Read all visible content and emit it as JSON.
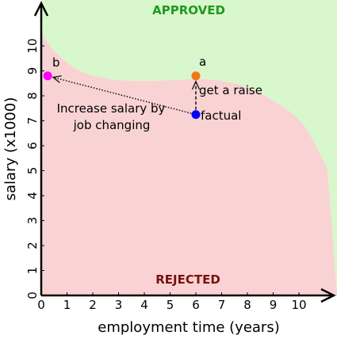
{
  "chart_data": {
    "type": "scatter",
    "title": "",
    "xlabel": "employment time (years)",
    "ylabel": "salary (x1000)",
    "xlim": [
      0,
      11.1
    ],
    "ylim": [
      0,
      11.1
    ],
    "x_ticks": [
      "0",
      "1",
      "2",
      "3",
      "4",
      "5",
      "6",
      "7",
      "8",
      "9",
      "10"
    ],
    "y_ticks": [
      "0",
      "1",
      "2",
      "3",
      "4",
      "5",
      "6",
      "7",
      "8",
      "9",
      "10"
    ],
    "grid": false,
    "regions": {
      "approved": {
        "label": "APPROVED",
        "fill": "#d9f7cc",
        "label_color": "#1e9a1e"
      },
      "rejected": {
        "label": "REJECTED",
        "fill": "#f9d3d3",
        "label_color": "#7a1010"
      }
    },
    "decision_boundary": [
      [
        0,
        10.5
      ],
      [
        0.6,
        9.7
      ],
      [
        1.5,
        9.0
      ],
      [
        2.5,
        8.7
      ],
      [
        3.5,
        8.6
      ],
      [
        4.5,
        8.6
      ],
      [
        5.5,
        8.65
      ],
      [
        6.5,
        8.65
      ],
      [
        7.5,
        8.5
      ],
      [
        8.3,
        8.2
      ],
      [
        9.0,
        7.8
      ],
      [
        9.6,
        7.4
      ],
      [
        10.2,
        6.8
      ],
      [
        10.7,
        5.9
      ],
      [
        11.1,
        5.1
      ]
    ],
    "points": [
      {
        "name": "factual",
        "x": 6.0,
        "y": 7.25,
        "color": "#0000ff"
      },
      {
        "name": "a",
        "x": 6.0,
        "y": 8.8,
        "color": "#f07818"
      },
      {
        "name": "b",
        "x": 0.25,
        "y": 8.8,
        "color": "#ff00ff"
      }
    ],
    "arrows": [
      {
        "from": "factual",
        "to": "a",
        "label": "get a raise"
      },
      {
        "from": "factual",
        "to": "b",
        "label": "Increase salary by job changing"
      }
    ]
  },
  "labels": {
    "approved": "APPROVED",
    "rejected": "REJECTED",
    "point_a": "a",
    "point_b": "b",
    "point_factual": "factual",
    "raise": "get a raise",
    "job_change_line1": "Increase salary by",
    "job_change_line2": "job changing",
    "xlabel": "employment time (years)",
    "ylabel": "salary (x1000)"
  }
}
